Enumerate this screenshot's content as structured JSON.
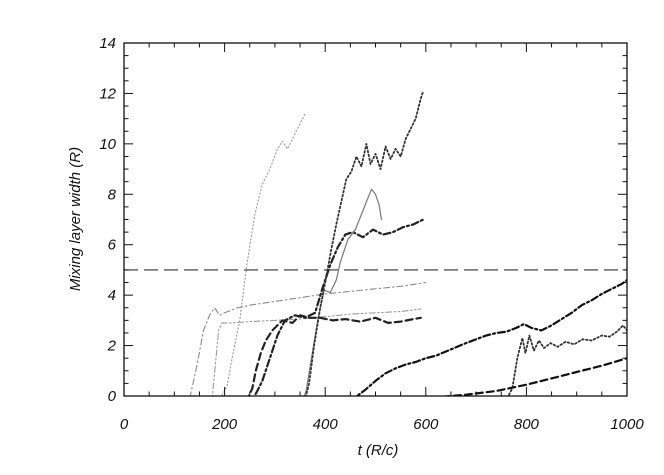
{
  "chart_data": {
    "type": "line",
    "title": "",
    "xlabel": "t (R/c)",
    "ylabel": "Mixing layer width (R)",
    "xlim": [
      0,
      1000
    ],
    "ylim": [
      0,
      14
    ],
    "xticks": [
      0,
      200,
      400,
      600,
      800,
      1000
    ],
    "yticks": [
      0,
      2,
      4,
      6,
      8,
      10,
      12,
      14
    ],
    "grid": false,
    "legend": "none",
    "reference_lines": [
      {
        "y": 5,
        "style": "long-dash",
        "color": "#333333"
      }
    ],
    "series": [
      {
        "style": "thin-dotted",
        "color": "#9a9a9a",
        "points": [
          [
            0,
            -0.15
          ],
          [
            190,
            -0.15
          ],
          [
            205,
            0.4
          ],
          [
            215,
            1.5
          ],
          [
            230,
            3.0
          ],
          [
            245,
            5.3
          ],
          [
            260,
            7.2
          ],
          [
            275,
            8.4
          ],
          [
            290,
            9.0
          ],
          [
            305,
            9.8
          ],
          [
            315,
            10.1
          ],
          [
            325,
            9.8
          ],
          [
            335,
            10.2
          ],
          [
            345,
            10.6
          ],
          [
            360,
            11.2
          ]
        ]
      },
      {
        "style": "thin-dash-dot",
        "color": "#8a8a8a",
        "points": [
          [
            0,
            -0.15
          ],
          [
            130,
            -0.15
          ],
          [
            145,
            1.2
          ],
          [
            158,
            2.6
          ],
          [
            170,
            3.2
          ],
          [
            180,
            3.5
          ],
          [
            190,
            3.2
          ],
          [
            200,
            3.3
          ],
          [
            225,
            3.5
          ],
          [
            250,
            3.6
          ],
          [
            300,
            3.75
          ],
          [
            350,
            3.9
          ],
          [
            400,
            4.05
          ],
          [
            450,
            4.15
          ],
          [
            500,
            4.25
          ],
          [
            550,
            4.35
          ],
          [
            600,
            4.5
          ]
        ]
      },
      {
        "style": "thin-dash-dot-dot",
        "color": "#9a9a9a",
        "points": [
          [
            0,
            -0.15
          ],
          [
            175,
            -0.15
          ],
          [
            182,
            1.3
          ],
          [
            188,
            2.6
          ],
          [
            195,
            2.9
          ],
          [
            215,
            2.9
          ],
          [
            250,
            2.95
          ],
          [
            300,
            3.0
          ],
          [
            350,
            3.05
          ],
          [
            400,
            3.15
          ],
          [
            450,
            3.25
          ],
          [
            500,
            3.3
          ],
          [
            550,
            3.35
          ],
          [
            590,
            3.45
          ]
        ]
      },
      {
        "style": "thick-dash",
        "color": "#222222",
        "points": [
          [
            0,
            -0.15
          ],
          [
            245,
            -0.15
          ],
          [
            255,
            0.3
          ],
          [
            262,
            1.0
          ],
          [
            272,
            1.7
          ],
          [
            282,
            2.2
          ],
          [
            295,
            2.6
          ],
          [
            305,
            2.8
          ],
          [
            315,
            3.0
          ],
          [
            335,
            2.9
          ],
          [
            350,
            3.2
          ],
          [
            370,
            3.1
          ],
          [
            390,
            3.1
          ],
          [
            415,
            3.0
          ],
          [
            440,
            3.05
          ],
          [
            470,
            2.95
          ],
          [
            500,
            3.1
          ],
          [
            525,
            2.9
          ],
          [
            550,
            2.95
          ],
          [
            575,
            3.05
          ],
          [
            590,
            3.1
          ]
        ]
      },
      {
        "style": "thick-dash-dot",
        "color": "#222222",
        "points": [
          [
            0,
            -0.15
          ],
          [
            255,
            -0.15
          ],
          [
            265,
            0.2
          ],
          [
            275,
            0.6
          ],
          [
            290,
            1.5
          ],
          [
            305,
            2.4
          ],
          [
            320,
            3.0
          ],
          [
            340,
            3.2
          ],
          [
            360,
            3.1
          ],
          [
            380,
            3.3
          ],
          [
            395,
            4.3
          ],
          [
            410,
            5.2
          ],
          [
            425,
            5.9
          ],
          [
            440,
            6.4
          ],
          [
            455,
            6.5
          ],
          [
            475,
            6.3
          ],
          [
            495,
            6.6
          ],
          [
            515,
            6.4
          ],
          [
            535,
            6.5
          ],
          [
            555,
            6.7
          ],
          [
            575,
            6.8
          ],
          [
            595,
            7.0
          ]
        ]
      },
      {
        "style": "thin-solid",
        "color": "#777777",
        "points": [
          [
            0,
            -0.15
          ],
          [
            355,
            -0.15
          ],
          [
            362,
            0.2
          ],
          [
            372,
            1.4
          ],
          [
            385,
            3.0
          ],
          [
            398,
            4.2
          ],
          [
            410,
            4.1
          ],
          [
            422,
            4.6
          ],
          [
            430,
            5.3
          ],
          [
            445,
            6.2
          ],
          [
            460,
            6.6
          ],
          [
            472,
            7.2
          ],
          [
            482,
            7.7
          ],
          [
            492,
            8.2
          ],
          [
            500,
            8.0
          ],
          [
            507,
            7.6
          ],
          [
            512,
            7.0
          ]
        ]
      },
      {
        "style": "dotted",
        "color": "#333333",
        "points": [
          [
            0,
            -0.15
          ],
          [
            360,
            -0.15
          ],
          [
            368,
            0.5
          ],
          [
            378,
            2.0
          ],
          [
            390,
            3.5
          ],
          [
            400,
            4.5
          ],
          [
            412,
            5.8
          ],
          [
            422,
            6.8
          ],
          [
            432,
            7.7
          ],
          [
            442,
            8.6
          ],
          [
            452,
            8.9
          ],
          [
            462,
            9.5
          ],
          [
            472,
            9.1
          ],
          [
            482,
            10.0
          ],
          [
            490,
            9.2
          ],
          [
            500,
            9.6
          ],
          [
            510,
            9.0
          ],
          [
            520,
            9.9
          ],
          [
            530,
            9.4
          ],
          [
            540,
            9.8
          ],
          [
            550,
            9.5
          ],
          [
            560,
            10.2
          ],
          [
            570,
            10.6
          ],
          [
            580,
            11.0
          ],
          [
            590,
            11.8
          ],
          [
            595,
            12.1
          ]
        ]
      },
      {
        "style": "thick-dash-dot",
        "color": "#111111",
        "points": [
          [
            0,
            -0.15
          ],
          [
            440,
            -0.15
          ],
          [
            460,
            -0.05
          ],
          [
            480,
            0.25
          ],
          [
            500,
            0.6
          ],
          [
            520,
            0.9
          ],
          [
            540,
            1.1
          ],
          [
            560,
            1.25
          ],
          [
            580,
            1.35
          ],
          [
            600,
            1.5
          ],
          [
            620,
            1.6
          ],
          [
            650,
            1.85
          ],
          [
            680,
            2.1
          ],
          [
            700,
            2.25
          ],
          [
            720,
            2.4
          ],
          [
            740,
            2.5
          ],
          [
            760,
            2.55
          ],
          [
            780,
            2.7
          ],
          [
            795,
            2.85
          ],
          [
            810,
            2.7
          ],
          [
            830,
            2.6
          ],
          [
            850,
            2.8
          ],
          [
            870,
            3.05
          ],
          [
            890,
            3.3
          ],
          [
            910,
            3.6
          ],
          [
            930,
            3.8
          ],
          [
            950,
            4.05
          ],
          [
            970,
            4.25
          ],
          [
            990,
            4.45
          ],
          [
            1000,
            4.6
          ]
        ]
      },
      {
        "style": "dotted",
        "color": "#333333",
        "points": [
          [
            0,
            -0.15
          ],
          [
            760,
            -0.15
          ],
          [
            772,
            0.3
          ],
          [
            782,
            1.5
          ],
          [
            792,
            2.3
          ],
          [
            798,
            1.7
          ],
          [
            806,
            2.4
          ],
          [
            815,
            1.8
          ],
          [
            825,
            2.2
          ],
          [
            835,
            1.9
          ],
          [
            848,
            2.1
          ],
          [
            862,
            1.95
          ],
          [
            878,
            2.15
          ],
          [
            895,
            2.05
          ],
          [
            912,
            2.25
          ],
          [
            930,
            2.2
          ],
          [
            950,
            2.4
          ],
          [
            965,
            2.35
          ],
          [
            980,
            2.55
          ],
          [
            992,
            2.8
          ],
          [
            1000,
            2.6
          ]
        ]
      },
      {
        "style": "thick-dash",
        "color": "#111111",
        "points": [
          [
            0,
            -0.15
          ],
          [
            500,
            -0.15
          ],
          [
            560,
            -0.1
          ],
          [
            620,
            -0.05
          ],
          [
            680,
            0.05
          ],
          [
            740,
            0.2
          ],
          [
            800,
            0.45
          ],
          [
            850,
            0.7
          ],
          [
            900,
            0.95
          ],
          [
            950,
            1.2
          ],
          [
            1000,
            1.5
          ]
        ]
      }
    ]
  }
}
